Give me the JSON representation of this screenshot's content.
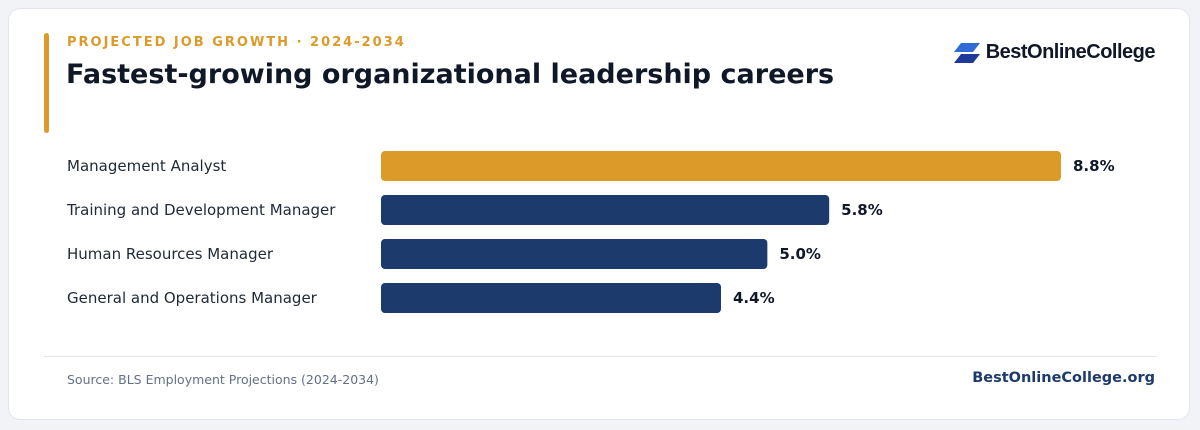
{
  "header": {
    "eyebrow": "PROJECTED JOB GROWTH · 2024-2034",
    "title": "Fastest-growing organizational leadership careers"
  },
  "logo": {
    "text": "BestOnlineCollege",
    "icon": "stacked-parallelogram-logo-icon"
  },
  "footer": {
    "source": "Source: BLS Employment Projections (2024-2034)",
    "site": "BestOnlineCollege.org"
  },
  "colors": {
    "accent": "#dc9a28",
    "bar": "#1d3a6c",
    "logo_blue": "#2f6bd8",
    "label": "#1f2937",
    "value": "#101828"
  },
  "chart_data": {
    "type": "bar",
    "orientation": "horizontal",
    "categories": [
      "Management Analyst",
      "Training and Development Manager",
      "Human Resources Manager",
      "General and Operations Manager"
    ],
    "values": [
      8.8,
      5.8,
      5.0,
      4.4
    ],
    "value_labels": [
      "8.8%",
      "5.8%",
      "5.0%",
      "4.4%"
    ],
    "highlight_index": 0,
    "xlim": [
      0,
      8.8
    ],
    "grid": false,
    "legend": "none"
  }
}
